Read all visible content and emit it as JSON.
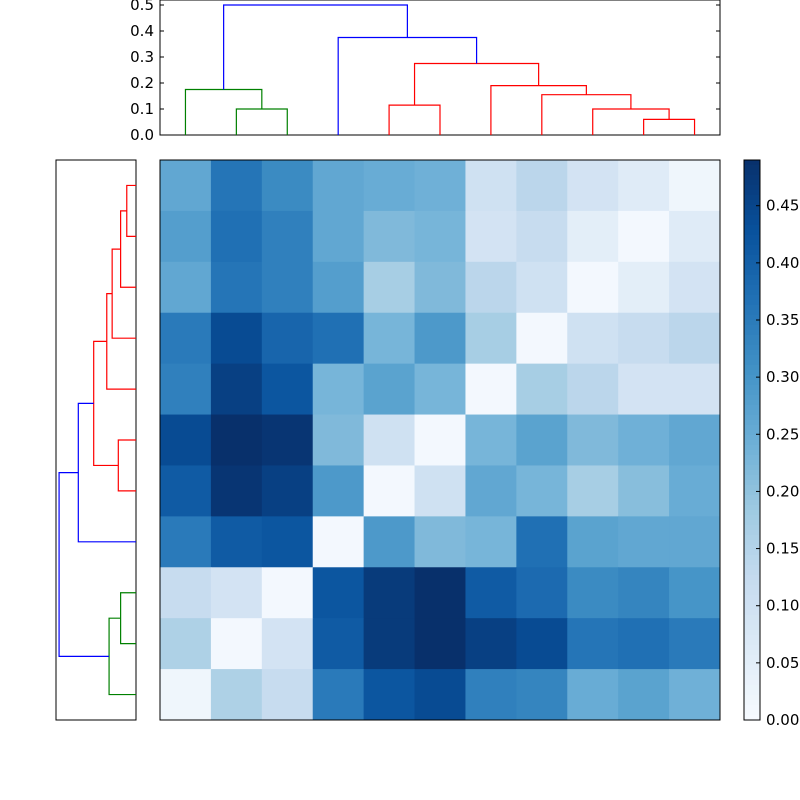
{
  "chart_data": [
    {
      "type": "dendrogram",
      "orientation": "top",
      "ylim": [
        0,
        0.5
      ],
      "yticks": [
        "0.0",
        "0.1",
        "0.2",
        "0.3",
        "0.4",
        "0.5"
      ],
      "leaf_count": 11,
      "links": [
        {
          "left": 9.5,
          "right": 10.5,
          "height": 0.06,
          "color": "#ff0000"
        },
        {
          "left": 8.5,
          "right": 10.0,
          "height": 0.1,
          "color": "#ff0000"
        },
        {
          "left": 7.5,
          "right": 9.25,
          "height": 0.155,
          "color": "#ff0000"
        },
        {
          "left": 6.5,
          "right": 8.375,
          "height": 0.19,
          "color": "#ff0000"
        },
        {
          "left": 4.5,
          "right": 5.5,
          "height": 0.115,
          "color": "#ff0000"
        },
        {
          "left": 5.0,
          "right": 7.4375,
          "height": 0.275,
          "color": "#ff0000"
        },
        {
          "left": 3.5,
          "right": 6.21875,
          "height": 0.375,
          "color": "#0000ff"
        },
        {
          "left": 1.5,
          "right": 2.5,
          "height": 0.1,
          "color": "#008000"
        },
        {
          "left": 0.5,
          "right": 2.0,
          "height": 0.175,
          "color": "#008000"
        },
        {
          "left": 1.25,
          "right": 4.859375,
          "height": 0.5,
          "color": "#0000ff"
        }
      ]
    },
    {
      "type": "dendrogram",
      "orientation": "left",
      "leaf_count": 11,
      "links": [
        {
          "a": 0.5,
          "b": 1.5,
          "height": 0.06,
          "color": "#ff0000"
        },
        {
          "a": 1.0,
          "b": 2.5,
          "height": 0.1,
          "color": "#ff0000"
        },
        {
          "a": 1.75,
          "b": 3.5,
          "height": 0.155,
          "color": "#ff0000"
        },
        {
          "a": 2.625,
          "b": 4.5,
          "height": 0.19,
          "color": "#ff0000"
        },
        {
          "a": 5.5,
          "b": 6.5,
          "height": 0.115,
          "color": "#ff0000"
        },
        {
          "a": 3.5625,
          "b": 6.0,
          "height": 0.275,
          "color": "#ff0000"
        },
        {
          "a": 4.78125,
          "b": 7.5,
          "height": 0.375,
          "color": "#0000ff"
        },
        {
          "a": 8.5,
          "b": 9.5,
          "height": 0.1,
          "color": "#008000"
        },
        {
          "a": 9.0,
          "b": 10.5,
          "height": 0.175,
          "color": "#008000"
        },
        {
          "a": 6.140625,
          "b": 9.75,
          "height": 0.5,
          "color": "#0000ff"
        }
      ]
    },
    {
      "type": "heatmap",
      "colormap": "Blues",
      "vmin": 0,
      "vmax": 0.49,
      "values": [
        [
          0.26,
          0.36,
          0.32,
          0.26,
          0.25,
          0.24,
          0.1,
          0.14,
          0.09,
          0.06,
          0.02
        ],
        [
          0.28,
          0.37,
          0.34,
          0.26,
          0.22,
          0.23,
          0.09,
          0.12,
          0.05,
          0.01,
          0.06
        ],
        [
          0.26,
          0.36,
          0.34,
          0.28,
          0.17,
          0.22,
          0.14,
          0.1,
          0.01,
          0.05,
          0.09
        ],
        [
          0.35,
          0.44,
          0.39,
          0.37,
          0.23,
          0.29,
          0.17,
          0.01,
          0.1,
          0.12,
          0.14
        ],
        [
          0.34,
          0.46,
          0.42,
          0.23,
          0.27,
          0.23,
          0.01,
          0.17,
          0.14,
          0.09,
          0.09
        ],
        [
          0.44,
          0.49,
          0.48,
          0.22,
          0.1,
          0.01,
          0.23,
          0.27,
          0.22,
          0.24,
          0.26
        ],
        [
          0.41,
          0.48,
          0.46,
          0.29,
          0.01,
          0.1,
          0.26,
          0.23,
          0.17,
          0.21,
          0.25
        ],
        [
          0.35,
          0.41,
          0.42,
          0.01,
          0.29,
          0.22,
          0.23,
          0.37,
          0.27,
          0.26,
          0.26
        ],
        [
          0.12,
          0.09,
          0.01,
          0.42,
          0.47,
          0.49,
          0.41,
          0.38,
          0.32,
          0.33,
          0.3
        ],
        [
          0.16,
          0.01,
          0.09,
          0.41,
          0.47,
          0.49,
          0.46,
          0.44,
          0.36,
          0.37,
          0.35
        ],
        [
          0.02,
          0.16,
          0.12,
          0.35,
          0.42,
          0.44,
          0.34,
          0.33,
          0.25,
          0.27,
          0.24
        ]
      ]
    },
    {
      "type": "colorbar",
      "colormap": "Blues",
      "vmin": 0,
      "vmax": 0.49,
      "ticks": [
        0.0,
        0.05,
        0.1,
        0.15,
        0.2,
        0.25,
        0.3,
        0.35,
        0.4,
        0.45
      ],
      "tick_labels": [
        "0.00",
        "0.05",
        "0.10",
        "0.15",
        "0.20",
        "0.25",
        "0.30",
        "0.35",
        "0.40",
        "0.45"
      ]
    }
  ]
}
